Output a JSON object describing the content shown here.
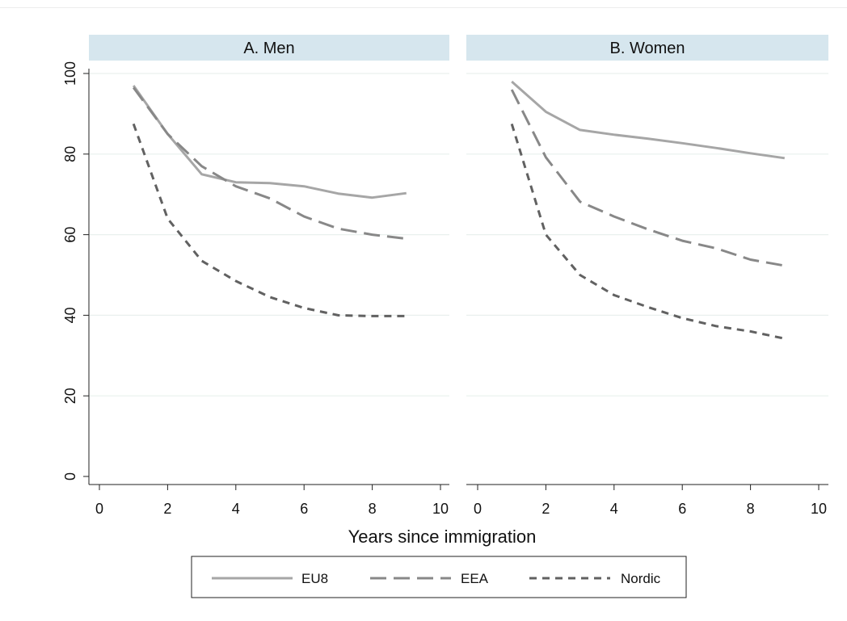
{
  "chart_data": {
    "type": "line",
    "xlabel": "Years since immigration",
    "xlim": [
      0,
      10
    ],
    "ylim": [
      0,
      100
    ],
    "x_ticks": [
      "0",
      "2",
      "4",
      "6",
      "8",
      "10"
    ],
    "y_ticks": [
      "0",
      "20",
      "40",
      "60",
      "80",
      "100"
    ],
    "grid": "horizontal",
    "legend_position": "bottom",
    "panels": [
      {
        "title": "A. Men",
        "series": [
          {
            "name": "EU8",
            "x": [
              1,
              2,
              3,
              4,
              5,
              6,
              7,
              8,
              9
            ],
            "values": [
              97,
              85,
              75,
              73,
              72.8,
              72,
              70.2,
              69.2,
              70.3
            ]
          },
          {
            "name": "EEA",
            "x": [
              1,
              2,
              3,
              4,
              5,
              6,
              7,
              8,
              9
            ],
            "values": [
              96.5,
              85,
              77,
              72,
              69,
              64.5,
              61.5,
              60,
              59
            ]
          },
          {
            "name": "Nordic",
            "x": [
              1,
              2,
              3,
              4,
              5,
              6,
              7,
              8,
              9
            ],
            "values": [
              87.5,
              64,
              53.5,
              48.5,
              44.5,
              41.8,
              40,
              39.8,
              39.8
            ]
          }
        ]
      },
      {
        "title": "B. Women",
        "series": [
          {
            "name": "EU8",
            "x": [
              1,
              2,
              3,
              4,
              5,
              6,
              7,
              8,
              9
            ],
            "values": [
              98,
              90.5,
              86,
              84.8,
              83.8,
              82.7,
              81.5,
              80.2,
              79
            ]
          },
          {
            "name": "EEA",
            "x": [
              1,
              2,
              3,
              4,
              5,
              6,
              7,
              8,
              9
            ],
            "values": [
              96,
              79.2,
              68.2,
              64.5,
              61.3,
              58.5,
              56.6,
              53.8,
              52.3
            ]
          },
          {
            "name": "Nordic",
            "x": [
              1,
              2,
              3,
              4,
              5,
              6,
              7,
              8,
              9
            ],
            "values": [
              87.5,
              60,
              50,
              45,
              42,
              39.3,
              37.3,
              36,
              34.2
            ]
          }
        ]
      }
    ],
    "legend": [
      {
        "name": "EU8",
        "color": "#a6a6a6",
        "dash": "solid"
      },
      {
        "name": "EEA",
        "color": "#888888",
        "dash": "long-dash"
      },
      {
        "name": "Nordic",
        "color": "#616161",
        "dash": "short-dash"
      }
    ]
  }
}
